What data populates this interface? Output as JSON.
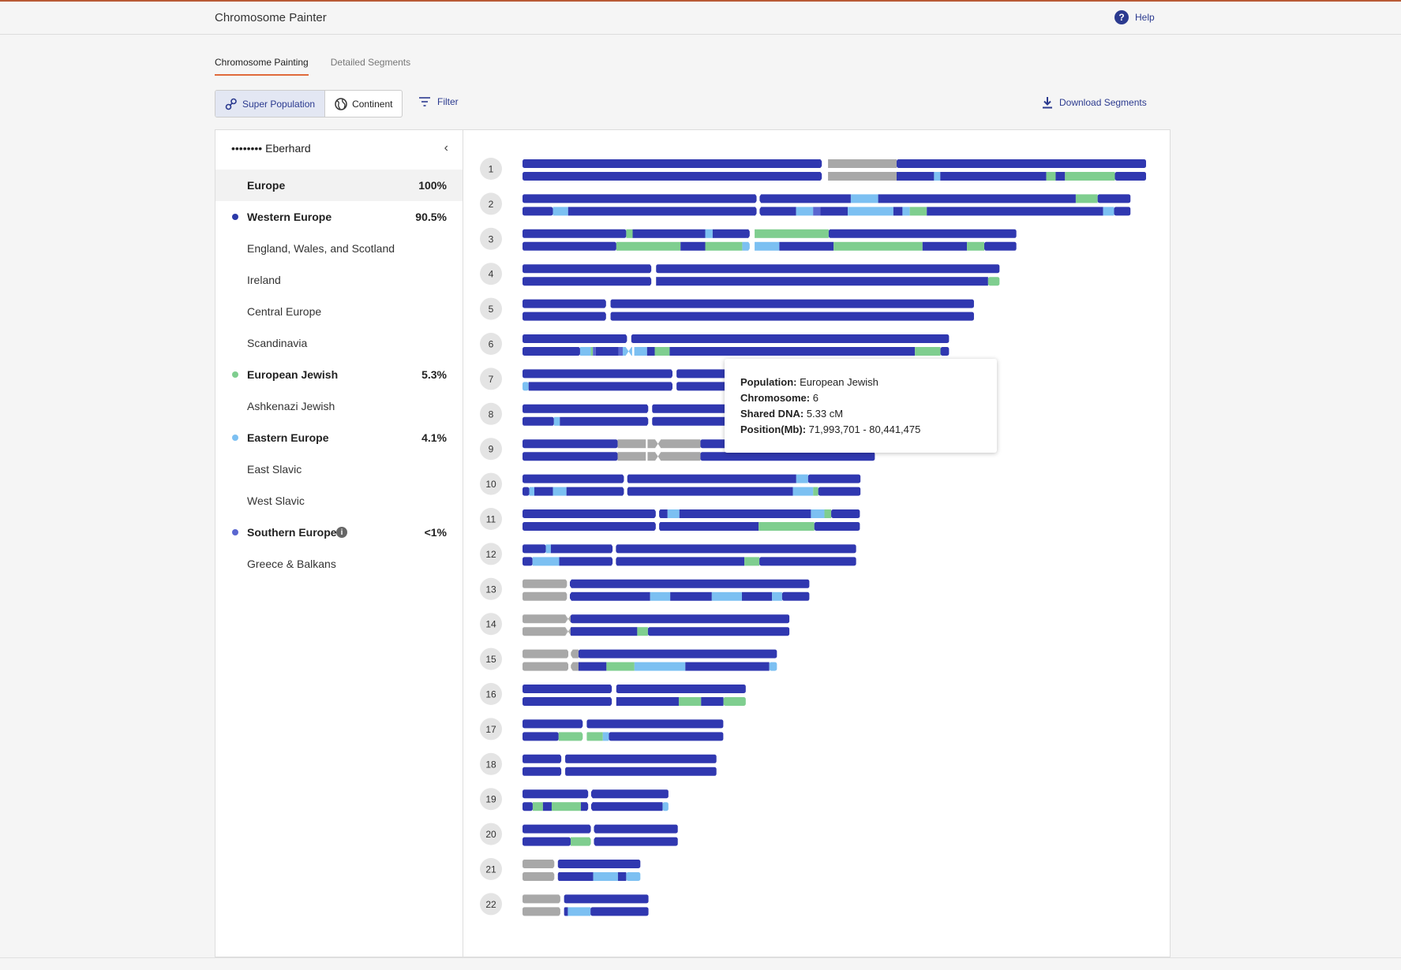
{
  "header": {
    "title": "Chromosome Painter",
    "help_label": "Help"
  },
  "tabs": [
    {
      "label": "Chromosome Painting",
      "active": true
    },
    {
      "label": "Detailed Segments",
      "active": false
    }
  ],
  "toggle": {
    "super_population": "Super Population",
    "continent": "Continent"
  },
  "filter_label": "Filter",
  "download_label": "Download Segments",
  "sidebar": {
    "user": "•••••••• Eberhard",
    "rows": [
      {
        "label": "Europe",
        "pct": "100%",
        "bold": true,
        "selected": true,
        "dot": ""
      },
      {
        "label": "Western Europe",
        "pct": "90.5%",
        "bold": true,
        "dot": "#2b3aa8"
      },
      {
        "label": "England, Wales, and Scotland",
        "pct": "",
        "bold": false,
        "dot": ""
      },
      {
        "label": "Ireland",
        "pct": "",
        "bold": false,
        "dot": ""
      },
      {
        "label": "Central Europe",
        "pct": "",
        "bold": false,
        "dot": ""
      },
      {
        "label": "Scandinavia",
        "pct": "",
        "bold": false,
        "dot": ""
      },
      {
        "label": "European Jewish",
        "pct": "5.3%",
        "bold": true,
        "dot": "#7fce8f"
      },
      {
        "label": "Ashkenazi Jewish",
        "pct": "",
        "bold": false,
        "dot": ""
      },
      {
        "label": "Eastern Europe",
        "pct": "4.1%",
        "bold": true,
        "dot": "#7cc0f2"
      },
      {
        "label": "East Slavic",
        "pct": "",
        "bold": false,
        "dot": ""
      },
      {
        "label": "West Slavic",
        "pct": "",
        "bold": false,
        "dot": ""
      },
      {
        "label": "Southern Europe",
        "pct": "<1%",
        "bold": true,
        "dot": "#5a66d0",
        "info": true
      },
      {
        "label": "Greece & Balkans",
        "pct": "",
        "bold": false,
        "dot": ""
      }
    ]
  },
  "colors": {
    "W": "#3038b0",
    "J": "#7fce8f",
    "E": "#7cc0f2",
    "S": "#5a66d0",
    "G": "#a8a8a8"
  },
  "chromosomes": [
    {
      "n": "1",
      "len": 1.0,
      "c": 0.48,
      "a": [
        [
          "W",
          0,
          0.48
        ],
        [
          "G",
          0.49,
          0.6
        ],
        [
          "W",
          0.6,
          1
        ]
      ],
      "b": [
        [
          "W",
          0,
          0.48
        ],
        [
          "G",
          0.49,
          0.6
        ],
        [
          "W",
          0.6,
          0.66
        ],
        [
          "E",
          0.66,
          0.67
        ],
        [
          "W",
          0.67,
          0.84
        ],
        [
          "J",
          0.84,
          0.855
        ],
        [
          "W",
          0.855,
          0.87
        ],
        [
          "J",
          0.87,
          0.95
        ],
        [
          "W",
          0.95,
          1
        ]
      ]
    },
    {
      "n": "2",
      "len": 0.975,
      "c": 0.385,
      "a": [
        [
          "W",
          0,
          0.385
        ],
        [
          "W",
          0.39,
          0.54
        ],
        [
          "E",
          0.54,
          0.585
        ],
        [
          "W",
          0.585,
          0.91
        ],
        [
          "J",
          0.91,
          0.946
        ],
        [
          "W",
          0.946,
          1
        ]
      ],
      "b": [
        [
          "W",
          0,
          0.05
        ],
        [
          "E",
          0.05,
          0.075
        ],
        [
          "W",
          0.075,
          0.385
        ],
        [
          "W",
          0.39,
          0.45
        ],
        [
          "E",
          0.45,
          0.478
        ],
        [
          "S",
          0.478,
          0.49
        ],
        [
          "W",
          0.49,
          0.535
        ],
        [
          "E",
          0.535,
          0.61
        ],
        [
          "W",
          0.61,
          0.625
        ],
        [
          "E",
          0.625,
          0.637
        ],
        [
          "J",
          0.637,
          0.665
        ],
        [
          "W",
          0.665,
          0.955
        ],
        [
          "E",
          0.955,
          0.973
        ],
        [
          "W",
          0.973,
          1
        ]
      ]
    },
    {
      "n": "3",
      "len": 0.792,
      "c": 0.46,
      "a": [
        [
          "W",
          0,
          0.21
        ],
        [
          "J",
          0.21,
          0.223
        ],
        [
          "W",
          0.223,
          0.37
        ],
        [
          "E",
          0.37,
          0.385
        ],
        [
          "W",
          0.385,
          0.46
        ],
        [
          "J",
          0.47,
          0.62
        ],
        [
          "W",
          0.62,
          1
        ]
      ],
      "b": [
        [
          "W",
          0,
          0.19
        ],
        [
          "J",
          0.19,
          0.32
        ],
        [
          "W",
          0.32,
          0.37
        ],
        [
          "J",
          0.37,
          0.445
        ],
        [
          "E",
          0.445,
          0.46
        ],
        [
          "E",
          0.47,
          0.52
        ],
        [
          "W",
          0.52,
          0.63
        ],
        [
          "J",
          0.63,
          0.81
        ],
        [
          "W",
          0.81,
          0.9
        ],
        [
          "J",
          0.9,
          0.935
        ],
        [
          "W",
          0.935,
          1
        ]
      ]
    },
    {
      "n": "4",
      "len": 0.765,
      "c": 0.27,
      "a": [
        [
          "W",
          0,
          0.27
        ],
        [
          "W",
          0.28,
          1
        ]
      ],
      "b": [
        [
          "W",
          0,
          0.27
        ],
        [
          "W",
          0.28,
          0.976
        ],
        [
          "J",
          0.976,
          1
        ]
      ]
    },
    {
      "n": "5",
      "len": 0.724,
      "c": 0.185,
      "a": [
        [
          "W",
          0,
          0.185
        ],
        [
          "W",
          0.195,
          1
        ]
      ],
      "b": [
        [
          "W",
          0,
          0.185
        ],
        [
          "W",
          0.195,
          1
        ]
      ]
    },
    {
      "n": "6",
      "len": 0.684,
      "c": 0.245,
      "a": [
        [
          "W",
          0,
          0.245
        ],
        [
          "W",
          0.255,
          1
        ]
      ],
      "b": [
        [
          "W",
          0,
          0.135
        ],
        [
          "E",
          0.135,
          0.16
        ],
        [
          "J",
          0.16,
          0.165
        ],
        [
          "S",
          0.165,
          0.172
        ],
        [
          "W",
          0.172,
          0.225
        ],
        [
          "S",
          0.225,
          0.235
        ],
        [
          "E",
          0.235,
          0.257
        ],
        [
          "E",
          0.262,
          0.292
        ],
        [
          "W",
          0.292,
          0.31
        ],
        [
          "J",
          0.31,
          0.345
        ],
        [
          "W",
          0.345,
          0.92
        ],
        [
          "J",
          0.92,
          0.98
        ],
        [
          "W",
          0.98,
          1
        ]
      ]
    },
    {
      "n": "7",
      "len": 0.65,
      "c": 0.37,
      "a": [
        [
          "W",
          0,
          0.37
        ],
        [
          "W",
          0.38,
          1
        ]
      ],
      "b": [
        [
          "E",
          0,
          0.015
        ],
        [
          "W",
          0.015,
          0.37
        ],
        [
          "W",
          0.38,
          1
        ]
      ]
    },
    {
      "n": "8",
      "len": 0.63,
      "c": 0.32,
      "a": [
        [
          "W",
          0,
          0.32
        ],
        [
          "W",
          0.33,
          1
        ]
      ],
      "b": [
        [
          "W",
          0,
          0.08
        ],
        [
          "E",
          0.08,
          0.095
        ],
        [
          "W",
          0.095,
          0.32
        ],
        [
          "W",
          0.33,
          1
        ]
      ]
    },
    {
      "n": "9",
      "len": 0.565,
      "c": 0.38,
      "a": [
        [
          "W",
          0,
          0.27
        ],
        [
          "G",
          0.27,
          0.35
        ],
        [
          "G",
          0.355,
          0.505
        ],
        [
          "W",
          0.505,
          1
        ]
      ],
      "b": [
        [
          "W",
          0,
          0.27
        ],
        [
          "G",
          0.27,
          0.35
        ],
        [
          "G",
          0.355,
          0.505
        ],
        [
          "W",
          0.505,
          1
        ]
      ]
    },
    {
      "n": "10",
      "len": 0.542,
      "c": 0.3,
      "a": [
        [
          "W",
          0,
          0.3
        ],
        [
          "W",
          0.31,
          0.81
        ],
        [
          "E",
          0.81,
          0.845
        ],
        [
          "W",
          0.845,
          1
        ]
      ],
      "b": [
        [
          "W",
          0,
          0.02
        ],
        [
          "E",
          0.02,
          0.035
        ],
        [
          "W",
          0.035,
          0.09
        ],
        [
          "E",
          0.09,
          0.13
        ],
        [
          "W",
          0.13,
          0.3
        ],
        [
          "W",
          0.31,
          0.8
        ],
        [
          "E",
          0.8,
          0.86
        ],
        [
          "J",
          0.86,
          0.875
        ],
        [
          "W",
          0.875,
          1
        ]
      ]
    },
    {
      "n": "11",
      "len": 0.541,
      "c": 0.395,
      "a": [
        [
          "W",
          0,
          0.395
        ],
        [
          "W",
          0.405,
          0.43
        ],
        [
          "E",
          0.43,
          0.465
        ],
        [
          "W",
          0.465,
          0.855
        ],
        [
          "E",
          0.855,
          0.895
        ],
        [
          "J",
          0.895,
          0.915
        ],
        [
          "W",
          0.915,
          1
        ]
      ],
      "b": [
        [
          "W",
          0,
          0.395
        ],
        [
          "W",
          0.405,
          0.7
        ],
        [
          "J",
          0.7,
          0.865
        ],
        [
          "W",
          0.865,
          1
        ]
      ]
    },
    {
      "n": "12",
      "len": 0.535,
      "c": 0.27,
      "a": [
        [
          "W",
          0,
          0.07
        ],
        [
          "E",
          0.07,
          0.085
        ],
        [
          "W",
          0.085,
          0.27
        ],
        [
          "W",
          0.28,
          1
        ]
      ],
      "b": [
        [
          "W",
          0,
          0.03
        ],
        [
          "E",
          0.03,
          0.11
        ],
        [
          "W",
          0.11,
          0.27
        ],
        [
          "W",
          0.28,
          0.665
        ],
        [
          "J",
          0.665,
          0.71
        ],
        [
          "W",
          0.71,
          1
        ]
      ]
    },
    {
      "n": "13",
      "len": 0.46,
      "c": 0.155,
      "a": [
        [
          "G",
          0,
          0.155
        ],
        [
          "W",
          0.165,
          1
        ]
      ],
      "b": [
        [
          "G",
          0,
          0.155
        ],
        [
          "W",
          0.165,
          0.445
        ],
        [
          "E",
          0.445,
          0.515
        ],
        [
          "W",
          0.515,
          0.66
        ],
        [
          "E",
          0.66,
          0.765
        ],
        [
          "W",
          0.765,
          0.87
        ],
        [
          "E",
          0.87,
          0.905
        ],
        [
          "W",
          0.905,
          1
        ]
      ]
    },
    {
      "n": "14",
      "len": 0.428,
      "c": 0.165,
      "a": [
        [
          "G",
          0,
          0.165
        ],
        [
          "G",
          0.165,
          0.18
        ],
        [
          "W",
          0.18,
          1
        ]
      ],
      "b": [
        [
          "G",
          0,
          0.165
        ],
        [
          "G",
          0.165,
          0.18
        ],
        [
          "W",
          0.18,
          0.43
        ],
        [
          "J",
          0.43,
          0.47
        ],
        [
          "W",
          0.47,
          1
        ]
      ]
    },
    {
      "n": "15",
      "len": 0.408,
      "c": 0.18,
      "a": [
        [
          "G",
          0,
          0.18
        ],
        [
          "G",
          0.19,
          0.22
        ],
        [
          "W",
          0.22,
          1
        ]
      ],
      "b": [
        [
          "G",
          0,
          0.18
        ],
        [
          "G",
          0.19,
          0.22
        ],
        [
          "W",
          0.22,
          0.33
        ],
        [
          "J",
          0.33,
          0.44
        ],
        [
          "E",
          0.44,
          0.64
        ],
        [
          "W",
          0.64,
          0.97
        ],
        [
          "E",
          0.97,
          1
        ]
      ]
    },
    {
      "n": "16",
      "len": 0.358,
      "c": 0.4,
      "a": [
        [
          "W",
          0,
          0.4
        ],
        [
          "W",
          0.42,
          1
        ]
      ],
      "b": [
        [
          "W",
          0,
          0.4
        ],
        [
          "W",
          0.42,
          0.7
        ],
        [
          "J",
          0.7,
          0.8
        ],
        [
          "W",
          0.8,
          0.9
        ],
        [
          "J",
          0.9,
          1
        ]
      ]
    },
    {
      "n": "17",
      "len": 0.322,
      "c": 0.3,
      "a": [
        [
          "W",
          0,
          0.3
        ],
        [
          "W",
          0.32,
          1
        ]
      ],
      "b": [
        [
          "W",
          0,
          0.18
        ],
        [
          "J",
          0.18,
          0.3
        ],
        [
          "J",
          0.32,
          0.4
        ],
        [
          "E",
          0.4,
          0.43
        ],
        [
          "W",
          0.43,
          1
        ]
      ]
    },
    {
      "n": "18",
      "len": 0.311,
      "c": 0.2,
      "a": [
        [
          "W",
          0,
          0.2
        ],
        [
          "W",
          0.22,
          1
        ]
      ],
      "b": [
        [
          "W",
          0,
          0.2
        ],
        [
          "W",
          0.22,
          1
        ]
      ]
    },
    {
      "n": "19",
      "len": 0.234,
      "c": 0.45,
      "a": [
        [
          "W",
          0,
          0.45
        ],
        [
          "W",
          0.47,
          1
        ]
      ],
      "b": [
        [
          "W",
          0,
          0.07
        ],
        [
          "J",
          0.07,
          0.14
        ],
        [
          "W",
          0.14,
          0.2
        ],
        [
          "J",
          0.2,
          0.4
        ],
        [
          "W",
          0.4,
          0.45
        ],
        [
          "W",
          0.47,
          0.96
        ],
        [
          "E",
          0.96,
          1
        ]
      ]
    },
    {
      "n": "20",
      "len": 0.249,
      "c": 0.44,
      "a": [
        [
          "W",
          0,
          0.44
        ],
        [
          "W",
          0.46,
          1
        ]
      ],
      "b": [
        [
          "W",
          0,
          0.31
        ],
        [
          "J",
          0.31,
          0.44
        ],
        [
          "W",
          0.46,
          1
        ]
      ]
    },
    {
      "n": "21",
      "len": 0.189,
      "c": 0.27,
      "a": [
        [
          "G",
          0,
          0.27
        ],
        [
          "W",
          0.3,
          1
        ]
      ],
      "b": [
        [
          "G",
          0,
          0.27
        ],
        [
          "W",
          0.3,
          0.6
        ],
        [
          "E",
          0.6,
          0.81
        ],
        [
          "W",
          0.81,
          0.88
        ],
        [
          "E",
          0.88,
          1
        ]
      ]
    },
    {
      "n": "22",
      "len": 0.202,
      "c": 0.3,
      "a": [
        [
          "G",
          0,
          0.3
        ],
        [
          "W",
          0.33,
          1
        ]
      ],
      "b": [
        [
          "G",
          0,
          0.3
        ],
        [
          "W",
          0.33,
          0.36
        ],
        [
          "E",
          0.36,
          0.54
        ],
        [
          "W",
          0.54,
          1
        ]
      ]
    }
  ],
  "tooltip": {
    "population_label": "Population:",
    "population": "European Jewish",
    "chromosome_label": "Chromosome:",
    "chromosome": "6",
    "shared_label": "Shared DNA:",
    "shared": "5.33 cM",
    "position_label": "Position(Mb):",
    "position": "71,993,701 - 80,441,475"
  }
}
